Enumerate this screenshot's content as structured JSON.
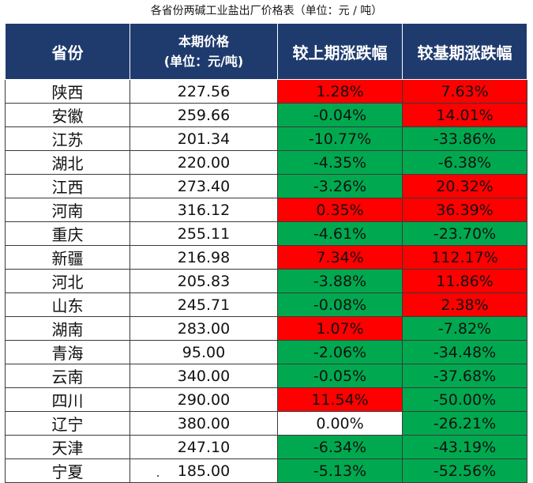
{
  "caption": "各省份两碱工业盐出厂价格表（单位：元 / 吨）",
  "colors": {
    "header_bg": "#1f3b6e",
    "increase": "#ff0000",
    "decrease": "#00a94f",
    "unchanged": "#ffffff"
  },
  "headers": {
    "province": "省份",
    "price_line1": "本期价格",
    "price_line2": "(单位：元/吨)",
    "vs_previous": "较上期涨跌幅",
    "vs_base": "较基期涨跌幅"
  },
  "rows": [
    {
      "province": "陕西",
      "price": "227.56",
      "vs_previous": "1.28%",
      "vs_base": "7.63%"
    },
    {
      "province": "安徽",
      "price": "259.66",
      "vs_previous": "-0.04%",
      "vs_base": "14.01%"
    },
    {
      "province": "江苏",
      "price": "201.34",
      "vs_previous": "-10.77%",
      "vs_base": "-33.86%"
    },
    {
      "province": "湖北",
      "price": "220.00",
      "vs_previous": "-4.35%",
      "vs_base": "-6.38%"
    },
    {
      "province": "江西",
      "price": "273.40",
      "vs_previous": "-3.26%",
      "vs_base": "20.32%"
    },
    {
      "province": "河南",
      "price": "316.12",
      "vs_previous": "0.35%",
      "vs_base": "36.39%"
    },
    {
      "province": "重庆",
      "price": "255.11",
      "vs_previous": "-4.61%",
      "vs_base": "-23.70%"
    },
    {
      "province": "新疆",
      "price": "216.98",
      "vs_previous": "7.34%",
      "vs_base": "112.17%"
    },
    {
      "province": "河北",
      "price": "205.83",
      "vs_previous": "-3.88%",
      "vs_base": "11.86%"
    },
    {
      "province": "山东",
      "price": "245.71",
      "vs_previous": "-0.08%",
      "vs_base": "2.38%"
    },
    {
      "province": "湖南",
      "price": "283.00",
      "vs_previous": "1.07%",
      "vs_base": "-7.82%"
    },
    {
      "province": "青海",
      "price": "95.00",
      "vs_previous": "-2.06%",
      "vs_base": "-34.48%"
    },
    {
      "province": "云南",
      "price": "340.00",
      "vs_previous": "-0.05%",
      "vs_base": "-37.68%"
    },
    {
      "province": "四川",
      "price": "290.00",
      "vs_previous": "11.54%",
      "vs_base": "-50.00%"
    },
    {
      "province": "辽宁",
      "price": "380.00",
      "vs_previous": "0.00%",
      "vs_base": "-26.21%"
    },
    {
      "province": "天津",
      "price": "247.10",
      "vs_previous": "-6.34%",
      "vs_base": "-43.19%"
    },
    {
      "province": "宁夏",
      "price": "185.00",
      "vs_previous": "-5.13%",
      "vs_base": "-52.56%"
    }
  ]
}
